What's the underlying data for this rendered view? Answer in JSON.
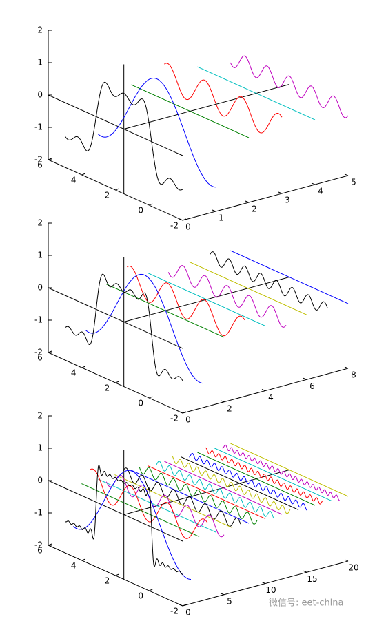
{
  "chart_data": [
    {
      "type": "line3d",
      "xlim": [
        0,
        5
      ],
      "xticks": [
        0,
        1,
        2,
        3,
        4,
        5
      ],
      "ylim": [
        -2,
        6
      ],
      "yticks": [
        -2,
        0,
        2,
        4,
        6
      ],
      "zlim": [
        -2,
        2
      ],
      "zticks": [
        -2,
        -1,
        0,
        1,
        2
      ]
    },
    {
      "type": "line3d",
      "xlim": [
        0,
        8
      ],
      "xticks": [
        0,
        2,
        4,
        6,
        8
      ],
      "ylim": [
        -2,
        6
      ],
      "yticks": [
        -2,
        0,
        2,
        4,
        6
      ],
      "zlim": [
        -2,
        2
      ],
      "zticks": [
        -2,
        -1,
        0,
        1,
        2
      ]
    },
    {
      "type": "line3d",
      "xlim": [
        0,
        20
      ],
      "xticks": [
        0,
        5,
        10,
        15,
        20
      ],
      "ylim": [
        -2,
        6
      ],
      "yticks": [
        -2,
        0,
        2,
        4,
        6
      ],
      "zlim": [
        -2,
        2
      ],
      "zticks": [
        -2,
        -1,
        0,
        1,
        2
      ]
    }
  ],
  "watermark": "微信号: eet-china"
}
